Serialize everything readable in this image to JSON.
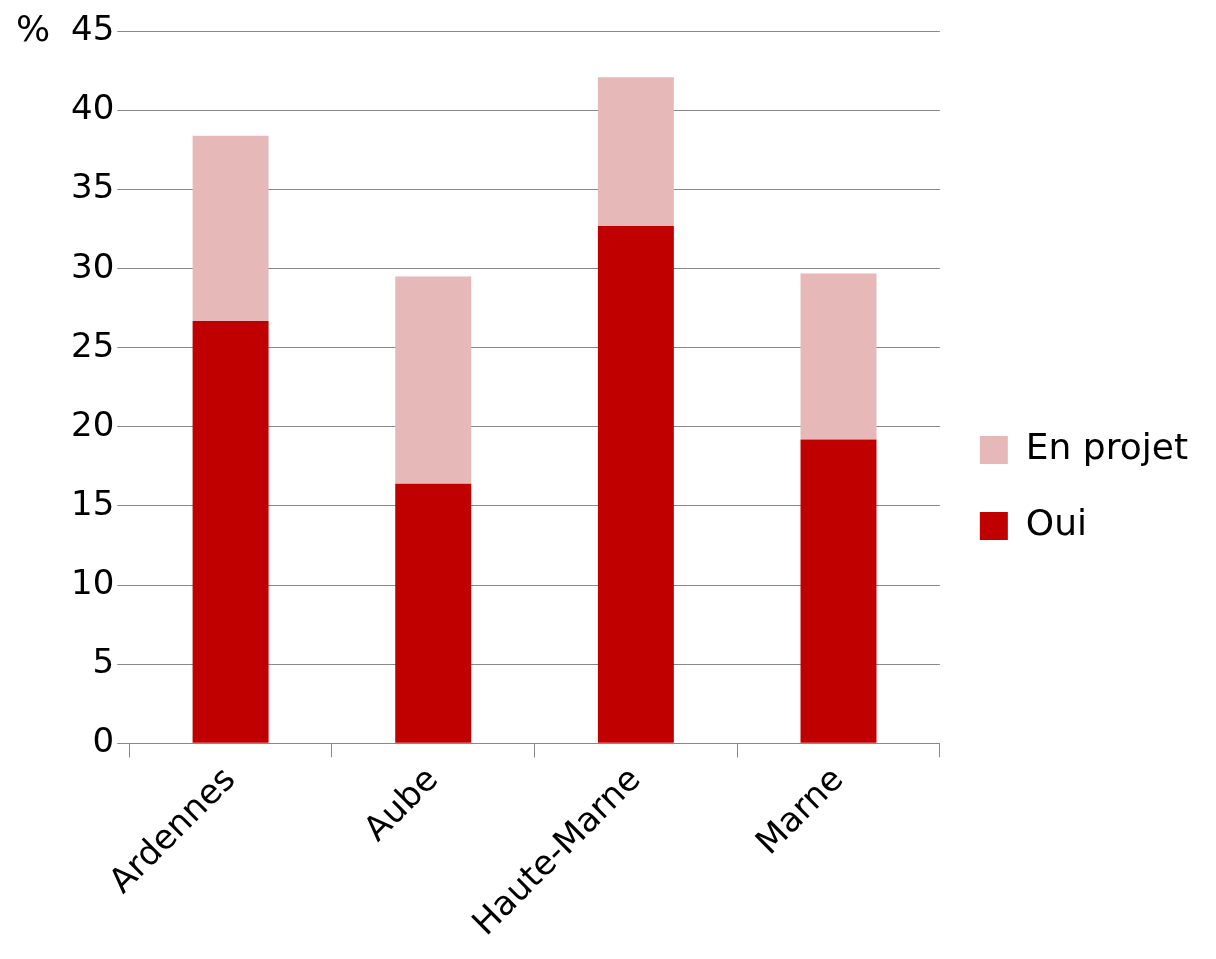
{
  "chart_data": {
    "type": "bar",
    "stacked": true,
    "ylabel": "%",
    "categories": [
      "Ardennes",
      "Aube",
      "Haute-Marne",
      "Marne"
    ],
    "series": [
      {
        "name": "Oui",
        "color": "#c00000",
        "values": [
          26.7,
          16.4,
          32.7,
          19.2
        ]
      },
      {
        "name": "En projet",
        "color": "#e6b9b8",
        "values": [
          11.7,
          13.1,
          9.4,
          10.5
        ]
      }
    ],
    "ylim": [
      0,
      45
    ],
    "yticks": [
      0,
      5,
      10,
      15,
      20,
      25,
      30,
      35,
      40,
      45
    ],
    "grid": "y",
    "legend": "right"
  }
}
